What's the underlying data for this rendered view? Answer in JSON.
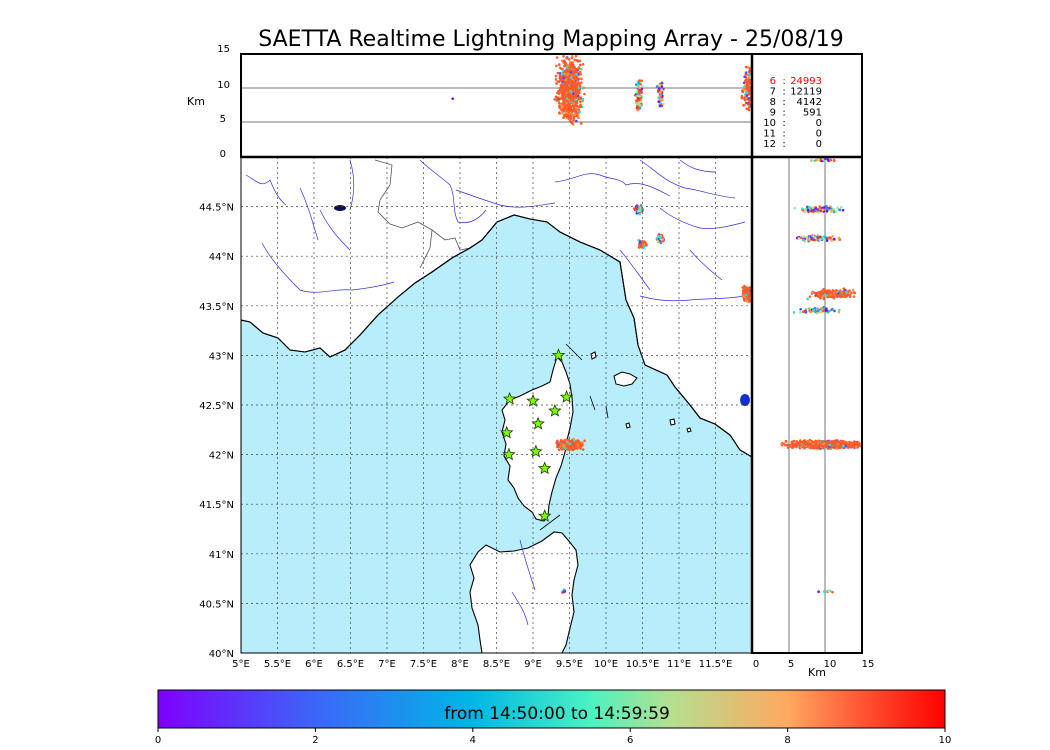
{
  "title": "SAETTA Realtime Lightning Mapping Array - 25/08/19",
  "colors": {
    "sea": "#b8edfb",
    "land": "#ffffff",
    "rivers": "#3030e0",
    "borders": "#444444",
    "accent_red": "#ff0000",
    "star_fill": "#7cfc00"
  },
  "top_panel": {
    "ylabel": "Km",
    "yticks": [
      "0",
      "5",
      "10",
      "15"
    ],
    "ylim": [
      0,
      15
    ]
  },
  "side_panel": {
    "xlabel": "Km",
    "xticks": [
      "0",
      "5",
      "10",
      "15"
    ],
    "xlim": [
      0,
      15
    ]
  },
  "map": {
    "lon_range": [
      5,
      12
    ],
    "lat_range": [
      40,
      45
    ],
    "lon_ticks": [
      "5°E",
      "5.5°E",
      "6°E",
      "6.5°E",
      "7°E",
      "7.5°E",
      "8°E",
      "8.5°E",
      "9°E",
      "9.5°E",
      "10°E",
      "10.5°E",
      "11°E",
      "11.5°E"
    ],
    "lat_ticks": [
      "40°N",
      "40.5°N",
      "41°N",
      "41.5°N",
      "42°N",
      "42.5°N",
      "43°N",
      "43.5°N",
      "44°N",
      "44.5°N"
    ],
    "stations": [
      {
        "lon": 9.35,
        "lat": 43.0
      },
      {
        "lon": 8.68,
        "lat": 42.56
      },
      {
        "lon": 9.0,
        "lat": 42.54
      },
      {
        "lon": 9.46,
        "lat": 42.58
      },
      {
        "lon": 9.3,
        "lat": 42.44
      },
      {
        "lon": 9.07,
        "lat": 42.31
      },
      {
        "lon": 8.64,
        "lat": 42.22
      },
      {
        "lon": 9.04,
        "lat": 42.03
      },
      {
        "lon": 8.67,
        "lat": 42.0
      },
      {
        "lon": 9.16,
        "lat": 41.86
      },
      {
        "lon": 9.16,
        "lat": 41.38
      }
    ],
    "clusters": [
      {
        "lon": 9.5,
        "lat": 42.1,
        "note": "main storm",
        "level": "red"
      },
      {
        "lon": 10.45,
        "lat": 44.47,
        "level": "mixed"
      },
      {
        "lon": 10.75,
        "lat": 44.18,
        "level": "mixed"
      },
      {
        "lon": 10.5,
        "lat": 44.12,
        "level": "red"
      },
      {
        "lon": 11.95,
        "lat": 43.62,
        "level": "red"
      },
      {
        "lon": 9.42,
        "lat": 40.62,
        "level": "mixed"
      }
    ]
  },
  "counts": [
    {
      "level": "6",
      "value": "24993",
      "highlight": true
    },
    {
      "level": "7",
      "value": "12119",
      "highlight": false
    },
    {
      "level": "8",
      "value": "4142",
      "highlight": false
    },
    {
      "level": "9",
      "value": "591",
      "highlight": false
    },
    {
      "level": "10",
      "value": "0",
      "highlight": false
    },
    {
      "level": "11",
      "value": "0",
      "highlight": false
    },
    {
      "level": "12",
      "value": "0",
      "highlight": false
    }
  ],
  "colorbar": {
    "label": "from 14:50:00 to 14:59:59",
    "ticks": [
      "0",
      "2",
      "4",
      "6",
      "8",
      "10"
    ],
    "range": [
      0,
      10
    ]
  }
}
